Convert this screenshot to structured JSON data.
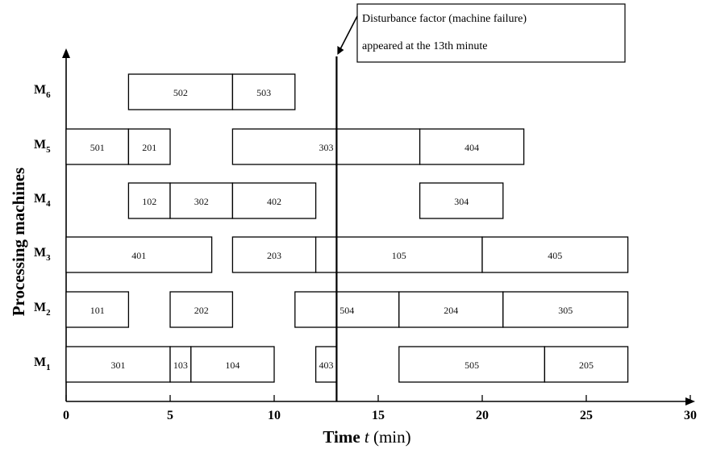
{
  "chart_data": {
    "type": "gantt",
    "title": "",
    "xlabel_prefix": "Time ",
    "xlabel_var": "t",
    "xlabel_suffix": " (min)",
    "ylabel": "Processing machines",
    "xlim": [
      0,
      30
    ],
    "xticks": [
      0,
      5,
      10,
      15,
      20,
      25,
      30
    ],
    "machines": [
      {
        "id": "M1",
        "letter": "M",
        "sub": "1",
        "tasks": [
          {
            "label": "301",
            "start": 0,
            "end": 5
          },
          {
            "label": "103",
            "start": 5,
            "end": 6
          },
          {
            "label": "104",
            "start": 6,
            "end": 10
          },
          {
            "label": "403",
            "start": 12,
            "end": 13
          },
          {
            "label": "505",
            "start": 16,
            "end": 23
          },
          {
            "label": "205",
            "start": 23,
            "end": 27
          }
        ]
      },
      {
        "id": "M2",
        "letter": "M",
        "sub": "2",
        "tasks": [
          {
            "label": "101",
            "start": 0,
            "end": 3
          },
          {
            "label": "202",
            "start": 5,
            "end": 8
          },
          {
            "label": "504",
            "start": 11,
            "end": 16
          },
          {
            "label": "204",
            "start": 16,
            "end": 21
          },
          {
            "label": "305",
            "start": 21,
            "end": 27
          }
        ]
      },
      {
        "id": "M3",
        "letter": "M",
        "sub": "3",
        "tasks": [
          {
            "label": "401",
            "start": 0,
            "end": 7
          },
          {
            "label": "203",
            "start": 8,
            "end": 12
          },
          {
            "label": "105",
            "start": 12,
            "end": 20
          },
          {
            "label": "405",
            "start": 20,
            "end": 27
          }
        ]
      },
      {
        "id": "M4",
        "letter": "M",
        "sub": "4",
        "tasks": [
          {
            "label": "102",
            "start": 3,
            "end": 5
          },
          {
            "label": "302",
            "start": 5,
            "end": 8
          },
          {
            "label": "402",
            "start": 8,
            "end": 12
          },
          {
            "label": "304",
            "start": 17,
            "end": 21
          }
        ]
      },
      {
        "id": "M5",
        "letter": "M",
        "sub": "5",
        "tasks": [
          {
            "label": "501",
            "start": 0,
            "end": 3
          },
          {
            "label": "201",
            "start": 3,
            "end": 5
          },
          {
            "label": "303",
            "start": 8,
            "end": 17
          },
          {
            "label": "404",
            "start": 17,
            "end": 22
          }
        ]
      },
      {
        "id": "M6",
        "letter": "M",
        "sub": "6",
        "tasks": [
          {
            "label": "502",
            "start": 3,
            "end": 8
          },
          {
            "label": "503",
            "start": 8,
            "end": 11
          }
        ]
      }
    ],
    "disturbance": {
      "time": 13,
      "line1": "Disturbance factor (machine failure)",
      "line2": "appeared at the 13th minute"
    },
    "grid": false
  }
}
